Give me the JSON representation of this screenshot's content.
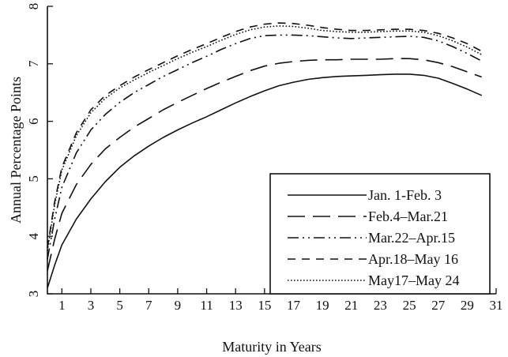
{
  "chart_data": {
    "type": "line",
    "title": "",
    "xlabel": "Maturity in Years",
    "ylabel": "Annual Percentage Points",
    "xlim": [
      0,
      31
    ],
    "ylim": [
      3,
      8
    ],
    "x_ticks": [
      1,
      3,
      5,
      7,
      9,
      11,
      13,
      15,
      17,
      19,
      21,
      23,
      25,
      27,
      29,
      31
    ],
    "y_ticks": [
      3,
      4,
      5,
      6,
      7,
      8
    ],
    "legend_position": "bottom-right",
    "x": [
      0,
      0.5,
      1,
      2,
      3,
      4,
      5,
      6,
      7,
      8,
      9,
      10,
      11,
      12,
      13,
      14,
      15,
      16,
      17,
      18,
      19,
      20,
      21,
      22,
      23,
      24,
      25,
      26,
      27,
      28,
      29,
      30
    ],
    "series": [
      {
        "name": "Jan. 1-Feb. 3",
        "dash": "solid",
        "values": [
          3.1,
          3.5,
          3.85,
          4.3,
          4.65,
          4.95,
          5.2,
          5.4,
          5.57,
          5.72,
          5.85,
          5.97,
          6.08,
          6.2,
          6.32,
          6.43,
          6.53,
          6.62,
          6.68,
          6.73,
          6.76,
          6.78,
          6.79,
          6.8,
          6.81,
          6.82,
          6.82,
          6.8,
          6.75,
          6.66,
          6.56,
          6.45
        ]
      },
      {
        "name": "Feb.4–Mar.21",
        "dash": "long-dash",
        "values": [
          3.4,
          3.95,
          4.4,
          4.9,
          5.25,
          5.52,
          5.72,
          5.9,
          6.05,
          6.2,
          6.33,
          6.45,
          6.57,
          6.68,
          6.78,
          6.88,
          6.96,
          7.01,
          7.04,
          7.06,
          7.07,
          7.07,
          7.08,
          7.08,
          7.08,
          7.09,
          7.09,
          7.07,
          7.02,
          6.95,
          6.86,
          6.77
        ]
      },
      {
        "name": "Mar.22–Apr.15",
        "dash": "dash-dot",
        "values": [
          3.6,
          4.3,
          4.85,
          5.45,
          5.85,
          6.12,
          6.33,
          6.5,
          6.64,
          6.78,
          6.9,
          7.02,
          7.13,
          7.25,
          7.35,
          7.44,
          7.49,
          7.5,
          7.5,
          7.49,
          7.47,
          7.45,
          7.44,
          7.45,
          7.46,
          7.47,
          7.48,
          7.46,
          7.4,
          7.3,
          7.18,
          7.05
        ]
      },
      {
        "name": "Apr.18–May 16",
        "dash": "short-dash",
        "values": [
          3.8,
          4.6,
          5.2,
          5.8,
          6.2,
          6.45,
          6.62,
          6.77,
          6.9,
          7.02,
          7.14,
          7.25,
          7.35,
          7.46,
          7.56,
          7.64,
          7.69,
          7.71,
          7.7,
          7.67,
          7.63,
          7.6,
          7.58,
          7.58,
          7.59,
          7.6,
          7.6,
          7.58,
          7.53,
          7.45,
          7.35,
          7.22
        ]
      },
      {
        "name": "May17–May 24",
        "dash": "dotted",
        "values": [
          3.75,
          4.55,
          5.15,
          5.75,
          6.15,
          6.4,
          6.58,
          6.72,
          6.85,
          6.97,
          7.09,
          7.2,
          7.3,
          7.41,
          7.51,
          7.59,
          7.64,
          7.66,
          7.65,
          7.62,
          7.58,
          7.56,
          7.55,
          7.55,
          7.56,
          7.57,
          7.57,
          7.55,
          7.49,
          7.4,
          7.29,
          7.16
        ]
      }
    ]
  }
}
